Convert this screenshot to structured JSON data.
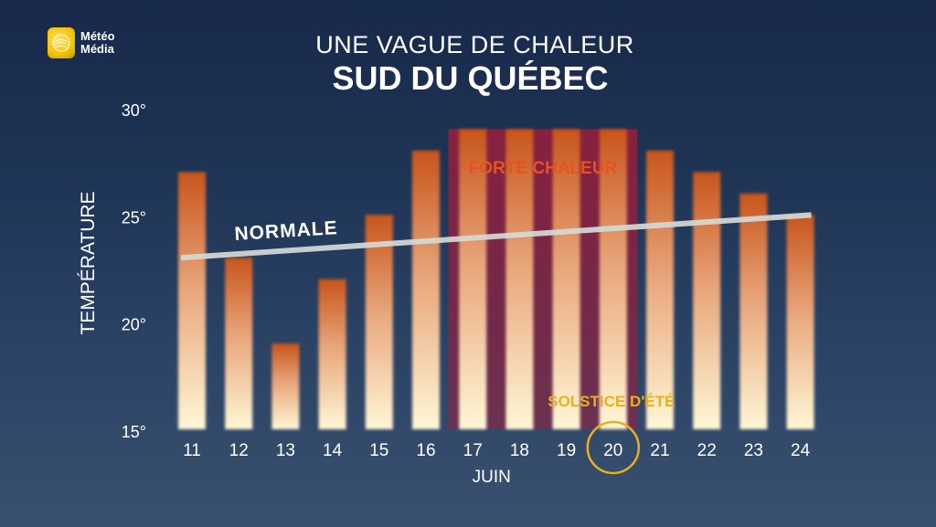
{
  "logo": {
    "line1": "Météo",
    "line2": "Média"
  },
  "header": {
    "title": "UNE VAGUE DE CHALEUR",
    "subtitle": "SUD DU QUÉBEC"
  },
  "colors": {
    "bar_top": "#c8551c",
    "bar_bottom": "#fff7d6",
    "highlight_band": "#9a1e3c",
    "normal_line": "#d5dad6",
    "forte_chaleur_text": "#e8521c",
    "solstice": "#e8b020",
    "axis_text": "#ffffff"
  },
  "chart_data": {
    "type": "bar",
    "title": "SUD DU QUÉBEC",
    "subtitle": "UNE VAGUE DE CHALEUR",
    "xlabel": "JUIN",
    "ylabel": "TEMPÉRATURE",
    "categories": [
      "11",
      "12",
      "13",
      "14",
      "15",
      "16",
      "17",
      "18",
      "19",
      "20",
      "21",
      "22",
      "23",
      "24"
    ],
    "values": [
      27,
      23,
      19,
      22,
      25,
      28,
      29,
      29,
      29,
      29,
      28,
      27,
      26,
      25
    ],
    "ylim": [
      15,
      30
    ],
    "yticks": [
      15,
      20,
      25,
      30
    ],
    "ytick_labels": [
      "15°",
      "20°",
      "25°",
      "30°"
    ],
    "grid": false,
    "normal_line": {
      "label": "NORMALE",
      "from": {
        "x": "11",
        "y": 23
      },
      "to": {
        "x": "24",
        "y": 25
      }
    },
    "highlight": {
      "label": "FORTE CHALEUR",
      "from": "17",
      "to": "20",
      "top": 29
    },
    "annotation": {
      "label": "SOLSTICE D'ÉTÉ",
      "category": "20"
    }
  }
}
